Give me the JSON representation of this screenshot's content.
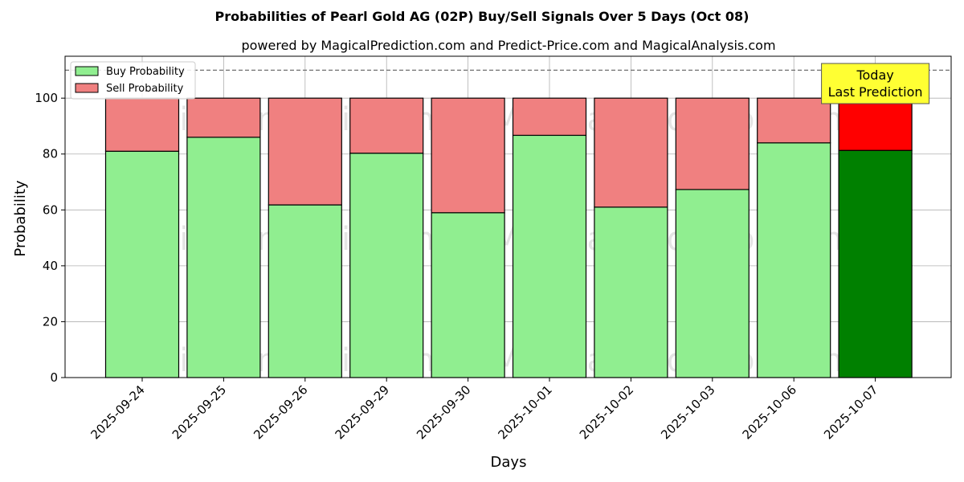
{
  "chart_data": {
    "type": "bar",
    "stacked": true,
    "title": "Probabilities of Pearl Gold AG (02P) Buy/Sell Signals Over 5 Days (Oct 08)",
    "subtitle": "powered by MagicalPrediction.com and Predict-Price.com and MagicalAnalysis.com",
    "xlabel": "Days",
    "ylabel": "Probability",
    "ylim": [
      0,
      115
    ],
    "yticks": [
      0,
      20,
      40,
      60,
      80,
      100
    ],
    "reference_line": 110,
    "grid": true,
    "legend_position": "upper-left",
    "categories": [
      "2025-09-24",
      "2025-09-25",
      "2025-09-26",
      "2025-09-29",
      "2025-09-30",
      "2025-10-01",
      "2025-10-02",
      "2025-10-03",
      "2025-10-06",
      "2025-10-07"
    ],
    "series": [
      {
        "name": "Buy Probability",
        "color": "#90ee90",
        "highlight_color": "#008000",
        "values": [
          81.0,
          86.0,
          61.8,
          80.3,
          59.0,
          86.7,
          61.0,
          67.3,
          84.0,
          81.3
        ]
      },
      {
        "name": "Sell Probability",
        "color": "#f08080",
        "highlight_color": "#ff0000",
        "values": [
          19.0,
          14.0,
          38.2,
          19.7,
          41.0,
          13.3,
          39.0,
          32.7,
          16.0,
          18.7
        ]
      }
    ],
    "highlight_index": 9,
    "annotation": {
      "lines": [
        "Today",
        "Last Prediction"
      ],
      "background": "#ffff33"
    },
    "watermarks": [
      "MagicalAnalysis.com",
      "MagicalPrediction.com"
    ]
  }
}
